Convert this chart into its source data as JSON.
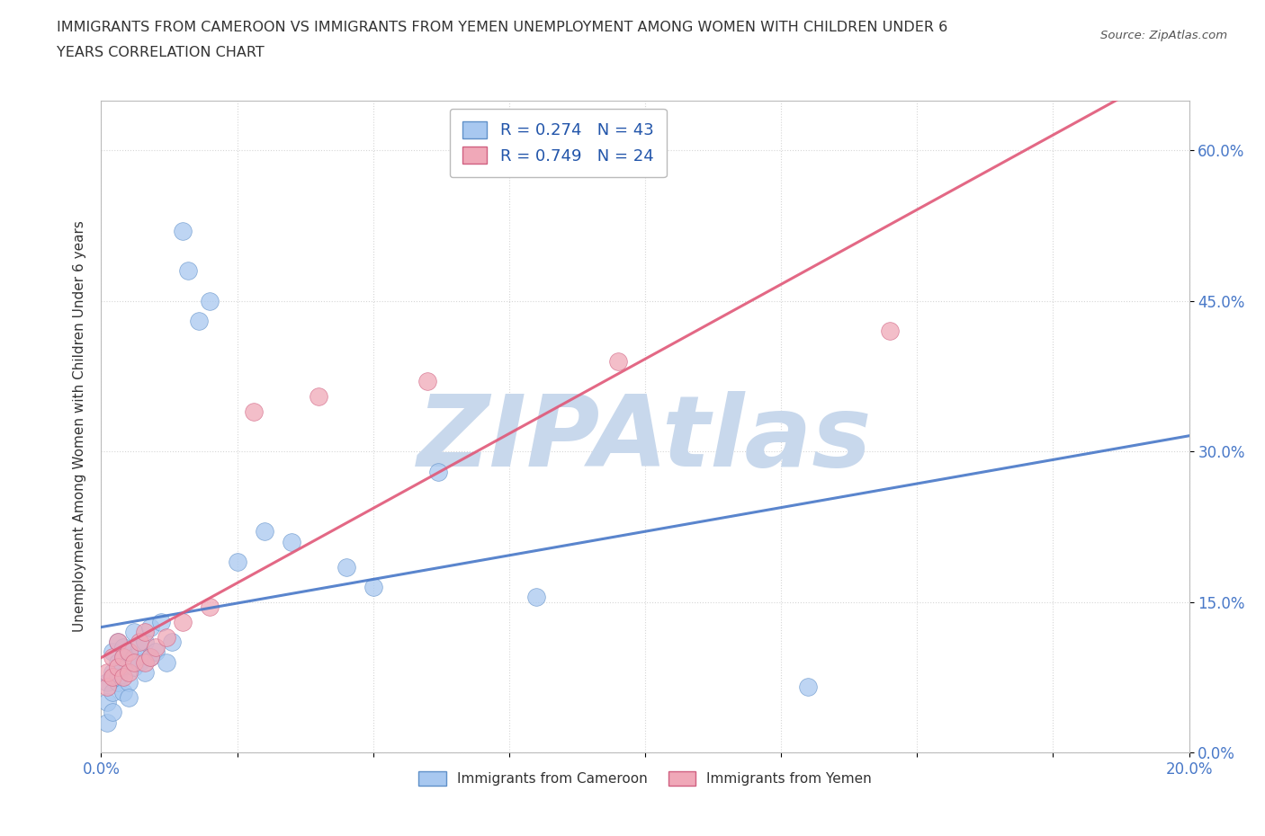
{
  "title_line1": "IMMIGRANTS FROM CAMEROON VS IMMIGRANTS FROM YEMEN UNEMPLOYMENT AMONG WOMEN WITH CHILDREN UNDER 6",
  "title_line2": "YEARS CORRELATION CHART",
  "source": "Source: ZipAtlas.com",
  "ylabel": "Unemployment Among Women with Children Under 6 years",
  "xlim": [
    0.0,
    0.2
  ],
  "ylim": [
    0.0,
    0.65
  ],
  "xticks": [
    0.0,
    0.025,
    0.05,
    0.075,
    0.1,
    0.125,
    0.15,
    0.175,
    0.2
  ],
  "ytick_positions": [
    0.0,
    0.15,
    0.3,
    0.45,
    0.6
  ],
  "ytick_labels": [
    "0.0%",
    "15.0%",
    "30.0%",
    "45.0%",
    "60.0%"
  ],
  "xtick_labels": [
    "0.0%",
    "",
    "",
    "",
    "",
    "",
    "",
    "",
    "20.0%"
  ],
  "cameroon_R": 0.274,
  "cameroon_N": 43,
  "yemen_R": 0.749,
  "yemen_N": 24,
  "cameroon_color": "#a8c8f0",
  "cameroon_edge": "#6090c8",
  "yemen_color": "#f0a8b8",
  "yemen_edge": "#d06080",
  "regression_cameroon_color": "#4878c8",
  "regression_yemen_color": "#e05878",
  "background_color": "#ffffff",
  "watermark": "ZIPAtlas",
  "watermark_color": "#c8d8ec",
  "cameroon_x": [
    0.001,
    0.001,
    0.001,
    0.002,
    0.002,
    0.002,
    0.002,
    0.003,
    0.003,
    0.003,
    0.003,
    0.004,
    0.004,
    0.004,
    0.004,
    0.005,
    0.005,
    0.005,
    0.006,
    0.006,
    0.006,
    0.007,
    0.007,
    0.008,
    0.008,
    0.009,
    0.009,
    0.01,
    0.011,
    0.012,
    0.013,
    0.015,
    0.016,
    0.018,
    0.02,
    0.025,
    0.03,
    0.035,
    0.045,
    0.05,
    0.062,
    0.08,
    0.13
  ],
  "cameroon_y": [
    0.05,
    0.07,
    0.03,
    0.06,
    0.08,
    0.1,
    0.04,
    0.07,
    0.09,
    0.11,
    0.075,
    0.085,
    0.105,
    0.06,
    0.095,
    0.07,
    0.1,
    0.055,
    0.085,
    0.12,
    0.095,
    0.09,
    0.105,
    0.11,
    0.08,
    0.125,
    0.095,
    0.1,
    0.13,
    0.09,
    0.11,
    0.52,
    0.48,
    0.43,
    0.45,
    0.19,
    0.22,
    0.21,
    0.185,
    0.165,
    0.28,
    0.155,
    0.065
  ],
  "yemen_x": [
    0.001,
    0.001,
    0.002,
    0.002,
    0.003,
    0.003,
    0.004,
    0.004,
    0.005,
    0.005,
    0.006,
    0.007,
    0.008,
    0.008,
    0.009,
    0.01,
    0.012,
    0.015,
    0.02,
    0.028,
    0.04,
    0.06,
    0.095,
    0.145
  ],
  "yemen_y": [
    0.065,
    0.08,
    0.075,
    0.095,
    0.085,
    0.11,
    0.075,
    0.095,
    0.08,
    0.1,
    0.09,
    0.11,
    0.09,
    0.12,
    0.095,
    0.105,
    0.115,
    0.13,
    0.145,
    0.34,
    0.355,
    0.37,
    0.39,
    0.42
  ]
}
